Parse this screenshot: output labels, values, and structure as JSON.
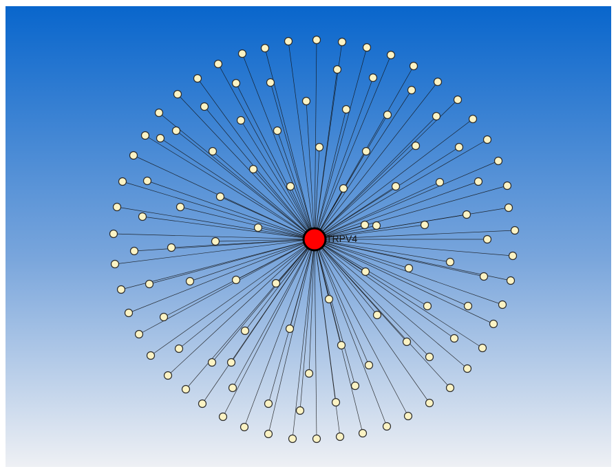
{
  "network": {
    "hub_label": "TRPV4",
    "hub_color": "#ff0000",
    "leaf_color": "#fbf3c4",
    "edge_color": "#111111",
    "background_top_color": "#0966cc",
    "background_bottom_color": "#eef0f4"
  }
}
